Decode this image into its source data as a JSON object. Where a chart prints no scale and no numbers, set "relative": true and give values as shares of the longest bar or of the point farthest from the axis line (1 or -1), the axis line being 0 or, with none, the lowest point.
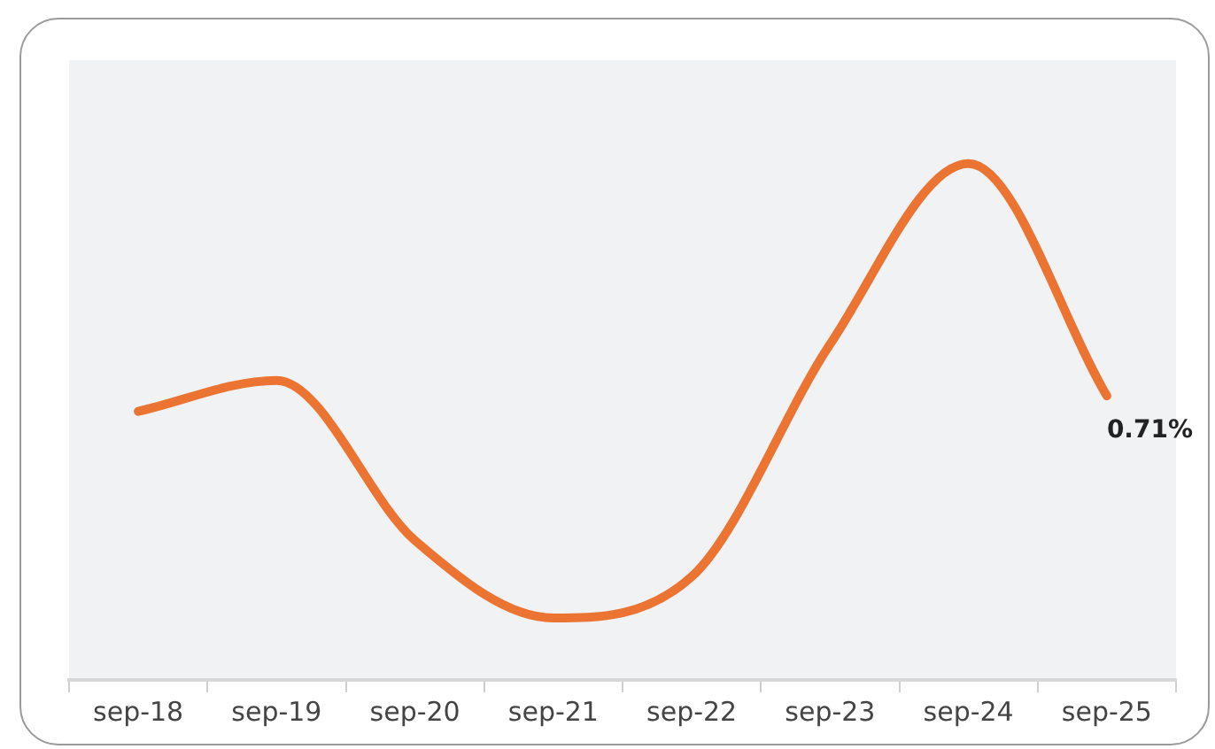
{
  "chart_data": {
    "type": "line",
    "relative": true,
    "categories": [
      "sep-18",
      "sep-19",
      "sep-20",
      "sep-21",
      "sep-22",
      "sep-23",
      "sep-24",
      "sep-25"
    ],
    "series": [
      {
        "color": "#eb7433",
        "values": [
          0.52,
          0.58,
          0.27,
          0.12,
          0.2,
          0.65,
          1,
          0.55
        ]
      }
    ],
    "annotations": [
      "0.71%"
    ],
    "grid": false,
    "legend": false,
    "marker": "none",
    "line_style": "solid",
    "tick_labels": "x"
  }
}
